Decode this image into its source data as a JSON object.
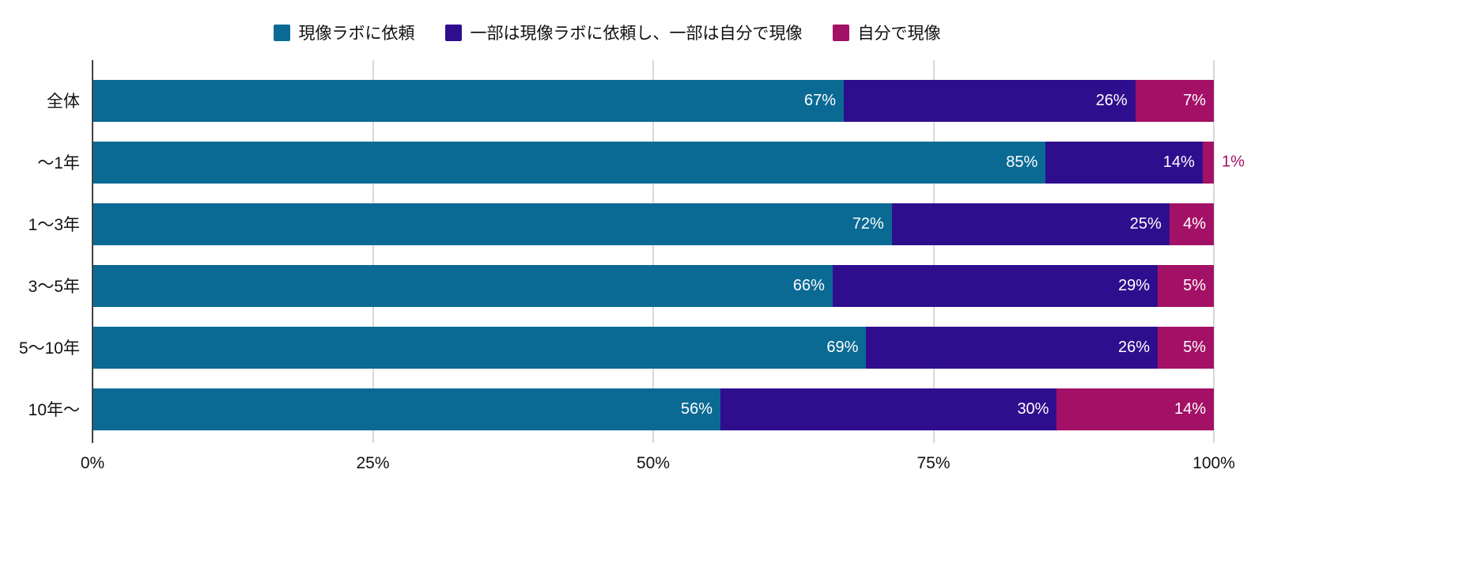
{
  "chart_data": {
    "type": "bar",
    "orientation": "horizontal",
    "stacked": true,
    "stacked_100": true,
    "title": "",
    "xlabel": "",
    "ylabel": "",
    "categories": [
      "全体",
      "〜1年",
      "1〜3年",
      "3〜5年",
      "5〜10年",
      "10年〜"
    ],
    "series": [
      {
        "name": "現像ラボに依頼",
        "color": "#0b6a94",
        "values": [
          67,
          85,
          72,
          66,
          69,
          56
        ]
      },
      {
        "name": "一部は現像ラボに依頼し、一部は自分で現像",
        "color": "#2f0e8e",
        "values": [
          26,
          14,
          25,
          29,
          26,
          30
        ]
      },
      {
        "name": "自分で現像",
        "color": "#a31166",
        "values": [
          7,
          1,
          4,
          5,
          5,
          14
        ]
      }
    ],
    "x_ticks": [
      {
        "label": "0%",
        "value": 0
      },
      {
        "label": "25%",
        "value": 25
      },
      {
        "label": "50%",
        "value": 50
      },
      {
        "label": "75%",
        "value": 75
      },
      {
        "label": "100%",
        "value": 100
      }
    ],
    "xlim": [
      0,
      100
    ],
    "grid": true,
    "legend_position": "top",
    "value_label_format": "{v}%",
    "value_label_color": "#ffffff",
    "small_segment_label_outside_threshold": 3,
    "axis_color": "#424242",
    "grid_color": "#d9d9d9",
    "text_color": "#111111",
    "background_color": "#ffffff"
  }
}
